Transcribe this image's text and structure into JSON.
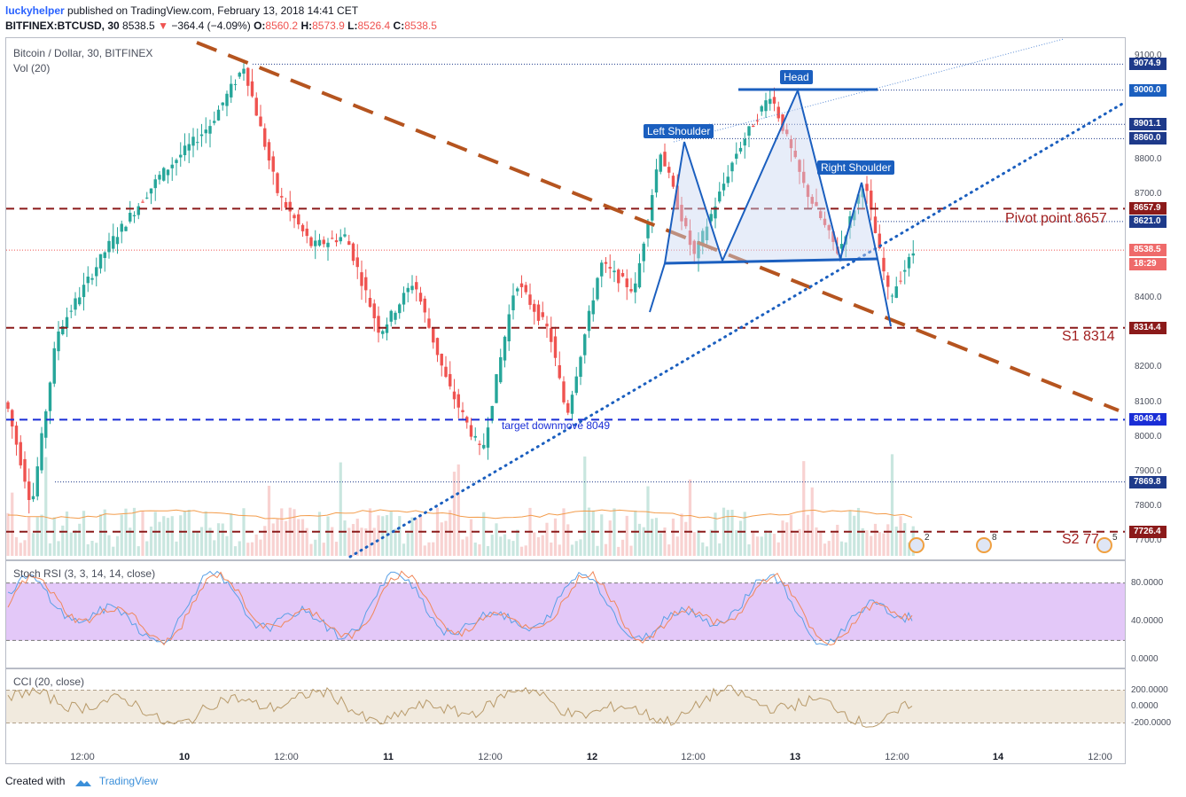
{
  "header": {
    "author": "luckyhelper",
    "published": "published on TradingView.com, February 13, 2018 14:41 CET",
    "symbol": "BITFINEX:BTCUSD, 30",
    "price": "8538.5",
    "change": "−364.4 (−4.09%)",
    "o_label": "O:",
    "o": "8560.2",
    "h_label": "H:",
    "h": "8573.9",
    "l_label": "L:",
    "l": "8526.4",
    "c_label": "C:",
    "c": "8538.5"
  },
  "legends": {
    "main": "Bitcoin / Dollar, 30, BITFINEX",
    "vol": "Vol (20)",
    "stoch": "Stoch RSI (3, 3, 14, 14, close)",
    "cci": "CCI (20, close)"
  },
  "price_axis": [
    "9100.0",
    "8900.0",
    "8800.0",
    "8700.0",
    "8400.0",
    "8200.0",
    "8100.0",
    "8000.0",
    "7900.0",
    "7800.0",
    "7700.0"
  ],
  "stoch_axis": [
    "80.0000",
    "40.0000",
    "0.0000"
  ],
  "cci_axis": [
    "200.0000",
    "0.0000",
    "-200.0000"
  ],
  "price_tags": [
    {
      "v": "9074.9",
      "price": 9074.9,
      "color": "#1e3a8a"
    },
    {
      "v": "9000.0",
      "price": 9000.0,
      "color": "#1b5fbf"
    },
    {
      "v": "8901.1",
      "price": 8901.1,
      "color": "#1e3a8a"
    },
    {
      "v": "8860.0",
      "price": 8860.0,
      "color": "#1e3a8a"
    },
    {
      "v": "8657.9",
      "price": 8657.9,
      "color": "#8b1a1a"
    },
    {
      "v": "8621.0",
      "price": 8621.0,
      "color": "#1e3a8a"
    },
    {
      "v": "8538.5",
      "price": 8538.5,
      "color": "#ef6a6a"
    },
    {
      "v": "18:29",
      "price": 8498,
      "color": "#ef6a6a"
    },
    {
      "v": "8314.4",
      "price": 8314.4,
      "color": "#8b1a1a"
    },
    {
      "v": "8049.4",
      "price": 8049.4,
      "color": "#1a2ed6"
    },
    {
      "v": "7869.8",
      "price": 7869.8,
      "color": "#1e3a8a"
    },
    {
      "v": "7726.4",
      "price": 7726.4,
      "color": "#8b1a1a"
    }
  ],
  "time_axis": [
    {
      "label": "12:00",
      "bold": false
    },
    {
      "label": "10",
      "bold": true
    },
    {
      "label": "12:00",
      "bold": false
    },
    {
      "label": "11",
      "bold": true
    },
    {
      "label": "12:00",
      "bold": false
    },
    {
      "label": "12",
      "bold": true
    },
    {
      "label": "12:00",
      "bold": false
    },
    {
      "label": "13",
      "bold": true
    },
    {
      "label": "12:00",
      "bold": false
    },
    {
      "label": "14",
      "bold": true
    },
    {
      "label": "12:00",
      "bold": false
    }
  ],
  "annotations": {
    "head": "Head",
    "left_shoulder": "Left Shoulder",
    "right_shoulder": "Right Shoulder",
    "pivot": "Pivot point 8657",
    "s1": "S1 8314",
    "s2": "S2 77",
    "target": "target downmove 8049"
  },
  "event_badges": [
    "2",
    "8",
    "5"
  ],
  "footer": {
    "created_with": "Created with",
    "brand": "TradingView"
  },
  "colors": {
    "up": "#26a69a",
    "down": "#ef5350",
    "pivot": "#8b1a1a",
    "target": "#1a2ed6",
    "pattern": "#1b5fbf",
    "trend": "#b5541f",
    "stoch_fill": "#d9b6f5",
    "cci_fill": "#efe6d8"
  },
  "chart_data": {
    "type": "line",
    "title": "Bitcoin / Dollar, 30, BITFINEX",
    "x_range": [
      "Feb 9 06:00",
      "Feb 14 13:00"
    ],
    "ylim": [
      7640,
      9150
    ],
    "price_path": [
      {
        "t": "Feb 9 06:00",
        "p": 8100
      },
      {
        "t": "Feb 9 09:00",
        "p": 7800
      },
      {
        "t": "Feb 9 12:00",
        "p": 8300
      },
      {
        "t": "Feb 9 18:00",
        "p": 8550
      },
      {
        "t": "Feb 10 00:00",
        "p": 8750
      },
      {
        "t": "Feb 10 06:00",
        "p": 8900
      },
      {
        "t": "Feb 10 10:00",
        "p": 9070
      },
      {
        "t": "Feb 10 14:00",
        "p": 8700
      },
      {
        "t": "Feb 10 18:00",
        "p": 8550
      },
      {
        "t": "Feb 10 22:00",
        "p": 8580
      },
      {
        "t": "Feb 11 02:00",
        "p": 8300
      },
      {
        "t": "Feb 11 06:00",
        "p": 8450
      },
      {
        "t": "Feb 11 10:00",
        "p": 8150
      },
      {
        "t": "Feb 11 14:00",
        "p": 7950
      },
      {
        "t": "Feb 11 18:00",
        "p": 8450
      },
      {
        "t": "Feb 11 22:00",
        "p": 8300
      },
      {
        "t": "Feb 12 00:00",
        "p": 8060
      },
      {
        "t": "Feb 12 04:00",
        "p": 8500
      },
      {
        "t": "Feb 12 08:00",
        "p": 8420
      },
      {
        "t": "Feb 12 11:00",
        "p": 8830
      },
      {
        "t": "Feb 12 15:00",
        "p": 8520
      },
      {
        "t": "Feb 12 20:00",
        "p": 8820
      },
      {
        "t": "Feb 13 00:00",
        "p": 8990
      },
      {
        "t": "Feb 13 04:00",
        "p": 8720
      },
      {
        "t": "Feb 13 08:00",
        "p": 8530
      },
      {
        "t": "Feb 13 11:00",
        "p": 8740
      },
      {
        "t": "Feb 13 14:00",
        "p": 8400
      },
      {
        "t": "Feb 13 17:00",
        "p": 8540
      }
    ],
    "levels": [
      {
        "name": "Pivot point",
        "value": 8657.9
      },
      {
        "name": "S1",
        "value": 8314.4
      },
      {
        "name": "target downmove",
        "value": 8049.4
      },
      {
        "name": "S2",
        "value": 7726.4
      },
      {
        "name": "Head",
        "value": 9000.0
      }
    ],
    "stoch_rsi_levels": [
      80,
      20
    ],
    "cci_levels": [
      100,
      -100
    ]
  }
}
